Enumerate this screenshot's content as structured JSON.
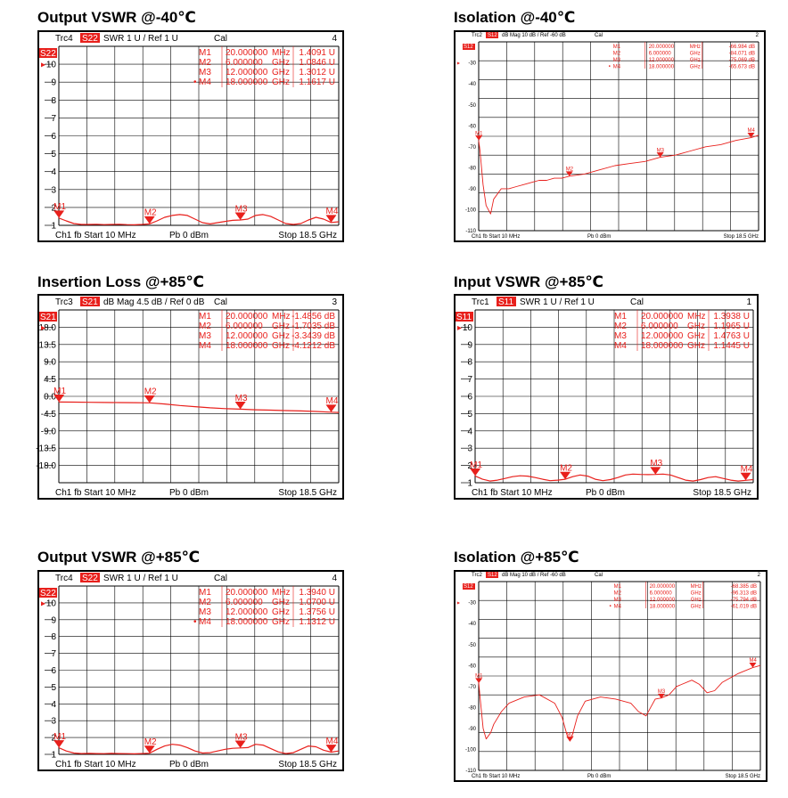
{
  "colors": {
    "trace": "#e8201c",
    "frame": "#000000",
    "grid": "#000000",
    "badge": "#e8201c"
  },
  "panels": [
    {
      "id": "output-vswr-m40",
      "heading": "Output VSWR @-40℃",
      "style": "big",
      "header": {
        "trc": "Trc4",
        "param": "S22",
        "fmt": "SWR  1 U /  Ref 1 U",
        "cal": "Cal",
        "num": "4"
      },
      "footer": {
        "left": "Ch1  fb  Start  10 MHz",
        "mid": "Pb   0 dBm",
        "right": "Stop  18.5 GHz"
      },
      "ytick_labels": [
        "10",
        "9",
        "8",
        "7",
        "6",
        "5",
        "4",
        "3",
        "2",
        "1"
      ],
      "marker_table": [
        {
          "id": "M1",
          "freq": "20.000000",
          "unit": "MHz",
          "value": "1.4091 U",
          "active": false
        },
        {
          "id": "M2",
          "freq": "6.000000",
          "unit": "GHz",
          "value": "1.0846 U",
          "active": false
        },
        {
          "id": "M3",
          "freq": "12.000000",
          "unit": "GHz",
          "value": "1.3012 U",
          "active": false
        },
        {
          "id": "M4",
          "freq": "18.000000",
          "unit": "GHz",
          "value": "1.1617 U",
          "active": true
        }
      ]
    },
    {
      "id": "isolation-m40",
      "heading": "Isolation @-40℃",
      "style": "small",
      "header": {
        "trc": "Trc2",
        "param": "S12",
        "fmt": "dB Mag   10 dB /  Ref -60 dB",
        "cal": "Cal",
        "num": "2"
      },
      "footer": {
        "left": "Ch1  fb  Start  10 MHz",
        "mid": "Pb   0 dBm",
        "right": "Stop  18.5 GHz"
      },
      "ytick_labels": [
        "-30",
        "-40",
        "-50",
        "-60",
        "-70",
        "-80",
        "-90",
        "-100",
        "-110"
      ],
      "marker_table": [
        {
          "id": "M1",
          "freq": "20.000000",
          "unit": "MHz",
          "value": "-66.984  dB",
          "active": false
        },
        {
          "id": "M2",
          "freq": "6.000000",
          "unit": "GHz",
          "value": "-84.071  dB",
          "active": false
        },
        {
          "id": "M3",
          "freq": "12.000000",
          "unit": "GHz",
          "value": "-75.069  dB",
          "active": false
        },
        {
          "id": "M4",
          "freq": "18.000000",
          "unit": "GHz",
          "value": "-65.673  dB",
          "active": true
        }
      ]
    },
    {
      "id": "insertion-loss-p85",
      "heading": "Insertion Loss @+85℃",
      "style": "big",
      "header": {
        "trc": "Trc3",
        "param": "S21",
        "fmt": "dB Mag   4.5 dB /  Ref 0 dB",
        "cal": "Cal",
        "num": "3"
      },
      "footer": {
        "left": "Ch1  fb  Start  10 MHz",
        "mid": "Pb   0 dBm",
        "right": "Stop  18.5 GHz"
      },
      "ytick_labels": [
        "18.0",
        "13.5",
        "9.0",
        "4.5",
        "0.0",
        "-4.5",
        "-9.0",
        "-13.5",
        "-18.0"
      ],
      "marker_table": [
        {
          "id": "M1",
          "freq": "20.000000",
          "unit": "MHz",
          "value": "-1.4856 dB",
          "active": false
        },
        {
          "id": "M2",
          "freq": "6.000000",
          "unit": "GHz",
          "value": "-1.7035 dB",
          "active": false
        },
        {
          "id": "M3",
          "freq": "12.000000",
          "unit": "GHz",
          "value": "-3.3439 dB",
          "active": false
        },
        {
          "id": "M4",
          "freq": "18.000000",
          "unit": "GHz",
          "value": "-4.1212 dB",
          "active": false
        }
      ]
    },
    {
      "id": "input-vswr-p85",
      "heading": "Input VSWR @+85℃",
      "style": "big",
      "header": {
        "trc": "Trc1",
        "param": "S11",
        "fmt": "SWR  1 U /  Ref 1 U",
        "cal": "Cal",
        "num": "1"
      },
      "footer": {
        "left": "Ch1  fb  Start  10 MHz",
        "mid": "Pb   0 dBm",
        "right": "Stop  18.5 GHz"
      },
      "ytick_labels": [
        "10",
        "9",
        "8",
        "7",
        "6",
        "5",
        "4",
        "3",
        "2",
        "1"
      ],
      "marker_table": [
        {
          "id": "M1",
          "freq": "20.000000",
          "unit": "MHz",
          "value": "1.3938 U",
          "active": false
        },
        {
          "id": "M2",
          "freq": "6.000000",
          "unit": "GHz",
          "value": "1.1965 U",
          "active": false
        },
        {
          "id": "M3",
          "freq": "12.000000",
          "unit": "GHz",
          "value": "1.4763 U",
          "active": false
        },
        {
          "id": "M4",
          "freq": "18.000000",
          "unit": "GHz",
          "value": "1.1445 U",
          "active": false
        }
      ]
    },
    {
      "id": "output-vswr-p85",
      "heading": "Output VSWR @+85℃",
      "style": "big",
      "header": {
        "trc": "Trc4",
        "param": "S22",
        "fmt": "SWR  1 U /  Ref 1 U",
        "cal": "Cal",
        "num": "4"
      },
      "footer": {
        "left": "Ch1  fb  Start  10 MHz",
        "mid": "Pb   0 dBm",
        "right": "Stop  18.5 GHz"
      },
      "ytick_labels": [
        "10",
        "9",
        "8",
        "7",
        "6",
        "5",
        "4",
        "3",
        "2",
        "1"
      ],
      "marker_table": [
        {
          "id": "M1",
          "freq": "20.000000",
          "unit": "MHz",
          "value": "1.3940 U",
          "active": false
        },
        {
          "id": "M2",
          "freq": "6.000000",
          "unit": "GHz",
          "value": "1.0700 U",
          "active": false
        },
        {
          "id": "M3",
          "freq": "12.000000",
          "unit": "GHz",
          "value": "1.3756 U",
          "active": false
        },
        {
          "id": "M4",
          "freq": "18.000000",
          "unit": "GHz",
          "value": "1.1312 U",
          "active": true
        }
      ]
    },
    {
      "id": "isolation-p85",
      "heading": "Isolation @+85℃",
      "style": "small",
      "header": {
        "trc": "Trc2",
        "param": "S12",
        "fmt": "dB Mag   10 dB /  Ref -60 dB",
        "cal": "Cal",
        "num": "2"
      },
      "footer": {
        "left": "Ch1  fb  Start  10 MHz",
        "mid": "Pb   0 dBm",
        "right": "Stop  18.5 GHz"
      },
      "ytick_labels": [
        "-30",
        "-40",
        "-50",
        "-60",
        "-70",
        "-80",
        "-90",
        "-100",
        "-110"
      ],
      "marker_table": [
        {
          "id": "M1",
          "freq": "20.000000",
          "unit": "MHz",
          "value": "-68.385  dB",
          "active": false
        },
        {
          "id": "M2",
          "freq": "6.000000",
          "unit": "GHz",
          "value": "-96.313  dB",
          "active": false
        },
        {
          "id": "M3",
          "freq": "12.000000",
          "unit": "GHz",
          "value": "-75.794  dB",
          "active": false
        },
        {
          "id": "M4",
          "freq": "18.000000",
          "unit": "GHz",
          "value": "-61.019  dB",
          "active": true
        }
      ]
    }
  ],
  "chart_data": [
    {
      "type": "line",
      "title": "Output VSWR @-40℃",
      "x_unit": "GHz",
      "xlim": [
        0.01,
        18.5
      ],
      "ylim": [
        1,
        11
      ],
      "y_unit": "U",
      "grid": true,
      "x": [
        0.01,
        0.5,
        1.0,
        1.5,
        2.0,
        2.5,
        3.0,
        3.5,
        4.0,
        4.5,
        5.0,
        5.5,
        6.0,
        6.5,
        7.0,
        7.5,
        8.0,
        8.5,
        9.0,
        9.5,
        10.0,
        10.5,
        11.0,
        11.5,
        12.0,
        12.5,
        13.0,
        13.5,
        14.0,
        14.5,
        15.0,
        15.5,
        16.0,
        16.5,
        17.0,
        17.5,
        18.0,
        18.5
      ],
      "series": [
        {
          "values": [
            1.41,
            1.25,
            1.1,
            1.05,
            1.05,
            1.06,
            1.04,
            1.05,
            1.06,
            1.04,
            1.03,
            1.05,
            1.08,
            1.25,
            1.45,
            1.55,
            1.6,
            1.55,
            1.35,
            1.15,
            1.08,
            1.15,
            1.22,
            1.28,
            1.3,
            1.35,
            1.55,
            1.6,
            1.5,
            1.3,
            1.1,
            1.05,
            1.1,
            1.3,
            1.45,
            1.35,
            1.16,
            1.2
          ]
        }
      ],
      "markers": [
        {
          "label": "M1",
          "x": 0.02,
          "y": 1.4091
        },
        {
          "label": "M2",
          "x": 6.0,
          "y": 1.0846
        },
        {
          "label": "M3",
          "x": 12.0,
          "y": 1.3012
        },
        {
          "label": "M4",
          "x": 18.0,
          "y": 1.1617
        }
      ]
    },
    {
      "type": "line",
      "title": "Isolation @-40℃",
      "x_unit": "GHz",
      "xlim": [
        0.01,
        18.5
      ],
      "ylim": [
        -110,
        -20
      ],
      "y_unit": "dB",
      "grid": true,
      "x": [
        0.01,
        0.1,
        0.3,
        0.5,
        0.8,
        1.0,
        1.5,
        2.0,
        2.5,
        3.0,
        3.5,
        4.0,
        4.5,
        5.0,
        5.5,
        6.0,
        7.0,
        8.0,
        9.0,
        10.0,
        11.0,
        12.0,
        13.0,
        14.0,
        15.0,
        16.0,
        17.0,
        18.0,
        18.5
      ],
      "series": [
        {
          "values": [
            -67,
            -72,
            -88,
            -98,
            -102,
            -95,
            -90,
            -90,
            -89,
            -88,
            -87,
            -86,
            -86,
            -85,
            -85,
            -84,
            -83,
            -81,
            -79,
            -78,
            -77,
            -75,
            -74,
            -72,
            -70,
            -69,
            -67,
            -65.7,
            -64.5
          ]
        }
      ],
      "markers": [
        {
          "label": "M1",
          "x": 0.02,
          "y": -66.984
        },
        {
          "label": "M2",
          "x": 6.0,
          "y": -84.071
        },
        {
          "label": "M3",
          "x": 12.0,
          "y": -75.069
        },
        {
          "label": "M4",
          "x": 18.0,
          "y": -65.673
        }
      ]
    },
    {
      "type": "line",
      "title": "Insertion Loss @+85℃",
      "x_unit": "GHz",
      "xlim": [
        0.01,
        18.5
      ],
      "ylim": [
        -22.5,
        22.5
      ],
      "y_unit": "dB",
      "grid": true,
      "x": [
        0.01,
        1.0,
        2.0,
        3.0,
        4.0,
        5.0,
        6.0,
        7.0,
        8.0,
        9.0,
        10.0,
        11.0,
        12.0,
        13.0,
        14.0,
        15.0,
        16.0,
        17.0,
        18.0,
        18.5
      ],
      "series": [
        {
          "values": [
            -1.49,
            -1.5,
            -1.55,
            -1.6,
            -1.62,
            -1.65,
            -1.7,
            -2.0,
            -2.4,
            -2.7,
            -3.0,
            -3.2,
            -3.34,
            -3.5,
            -3.6,
            -3.7,
            -3.8,
            -3.95,
            -4.12,
            -4.2
          ]
        }
      ],
      "markers": [
        {
          "label": "M1",
          "x": 0.02,
          "y": -1.4856
        },
        {
          "label": "M2",
          "x": 6.0,
          "y": -1.7035
        },
        {
          "label": "M3",
          "x": 12.0,
          "y": -3.3439
        },
        {
          "label": "M4",
          "x": 18.0,
          "y": -4.1212
        }
      ]
    },
    {
      "type": "line",
      "title": "Input VSWR @+85℃",
      "x_unit": "GHz",
      "xlim": [
        0.01,
        18.5
      ],
      "ylim": [
        1,
        11
      ],
      "y_unit": "U",
      "grid": true,
      "x": [
        0.01,
        0.5,
        1.0,
        1.5,
        2.0,
        2.5,
        3.0,
        3.5,
        4.0,
        4.5,
        5.0,
        5.5,
        6.0,
        6.5,
        7.0,
        7.5,
        8.0,
        8.5,
        9.0,
        9.5,
        10.0,
        10.5,
        11.0,
        11.5,
        12.0,
        12.5,
        13.0,
        13.5,
        14.0,
        14.5,
        15.0,
        15.5,
        16.0,
        16.5,
        17.0,
        17.5,
        18.0,
        18.5
      ],
      "series": [
        {
          "values": [
            1.39,
            1.2,
            1.1,
            1.15,
            1.25,
            1.35,
            1.4,
            1.38,
            1.3,
            1.2,
            1.12,
            1.15,
            1.2,
            1.35,
            1.45,
            1.38,
            1.2,
            1.12,
            1.18,
            1.3,
            1.45,
            1.5,
            1.48,
            1.47,
            1.48,
            1.5,
            1.45,
            1.3,
            1.15,
            1.1,
            1.18,
            1.3,
            1.35,
            1.25,
            1.15,
            1.1,
            1.14,
            1.18
          ]
        }
      ],
      "markers": [
        {
          "label": "M1",
          "x": 0.02,
          "y": 1.3938
        },
        {
          "label": "M2",
          "x": 6.0,
          "y": 1.1965
        },
        {
          "label": "M3",
          "x": 12.0,
          "y": 1.4763
        },
        {
          "label": "M4",
          "x": 18.0,
          "y": 1.1445
        }
      ]
    },
    {
      "type": "line",
      "title": "Output VSWR @+85℃",
      "x_unit": "GHz",
      "xlim": [
        0.01,
        18.5
      ],
      "ylim": [
        1,
        11
      ],
      "y_unit": "U",
      "grid": true,
      "x": [
        0.01,
        0.5,
        1.0,
        1.5,
        2.0,
        2.5,
        3.0,
        3.5,
        4.0,
        4.5,
        5.0,
        5.5,
        6.0,
        6.5,
        7.0,
        7.5,
        8.0,
        8.5,
        9.0,
        9.5,
        10.0,
        10.5,
        11.0,
        11.5,
        12.0,
        12.5,
        13.0,
        13.5,
        14.0,
        14.5,
        15.0,
        15.5,
        16.0,
        16.5,
        17.0,
        17.5,
        18.0,
        18.5
      ],
      "series": [
        {
          "values": [
            1.39,
            1.2,
            1.08,
            1.05,
            1.06,
            1.05,
            1.04,
            1.06,
            1.05,
            1.04,
            1.03,
            1.05,
            1.07,
            1.3,
            1.5,
            1.6,
            1.55,
            1.4,
            1.2,
            1.08,
            1.1,
            1.2,
            1.3,
            1.36,
            1.38,
            1.4,
            1.6,
            1.55,
            1.35,
            1.15,
            1.05,
            1.1,
            1.3,
            1.5,
            1.45,
            1.25,
            1.13,
            1.2
          ]
        }
      ],
      "markers": [
        {
          "label": "M1",
          "x": 0.02,
          "y": 1.394
        },
        {
          "label": "M2",
          "x": 6.0,
          "y": 1.07
        },
        {
          "label": "M3",
          "x": 12.0,
          "y": 1.3756
        },
        {
          "label": "M4",
          "x": 18.0,
          "y": 1.1312
        }
      ]
    },
    {
      "type": "line",
      "title": "Isolation @+85℃",
      "x_unit": "GHz",
      "xlim": [
        0.01,
        18.5
      ],
      "ylim": [
        -110,
        -20
      ],
      "y_unit": "dB",
      "grid": true,
      "x": [
        0.01,
        0.1,
        0.3,
        0.5,
        0.8,
        1.0,
        1.5,
        2.0,
        3.0,
        4.0,
        5.0,
        5.5,
        5.8,
        6.0,
        6.2,
        6.5,
        7.0,
        8.0,
        9.0,
        10.0,
        10.5,
        11.0,
        11.3,
        11.6,
        12.0,
        12.5,
        13.0,
        14.0,
        14.5,
        15.0,
        15.5,
        16.0,
        17.0,
        18.0,
        18.5
      ],
      "series": [
        {
          "values": [
            -68,
            -75,
            -90,
            -95,
            -92,
            -88,
            -82,
            -78,
            -75,
            -74,
            -78,
            -85,
            -93,
            -96,
            -92,
            -84,
            -77,
            -75,
            -76,
            -78,
            -82,
            -84,
            -80,
            -76,
            -75.5,
            -74,
            -70,
            -67,
            -69,
            -73,
            -72,
            -68,
            -64,
            -61,
            -60
          ]
        }
      ],
      "markers": [
        {
          "label": "M1",
          "x": 0.02,
          "y": -68.385
        },
        {
          "label": "M2",
          "x": 6.0,
          "y": -96.313
        },
        {
          "label": "M3",
          "x": 12.0,
          "y": -75.794
        },
        {
          "label": "M4",
          "x": 18.0,
          "y": -61.019
        }
      ]
    }
  ]
}
